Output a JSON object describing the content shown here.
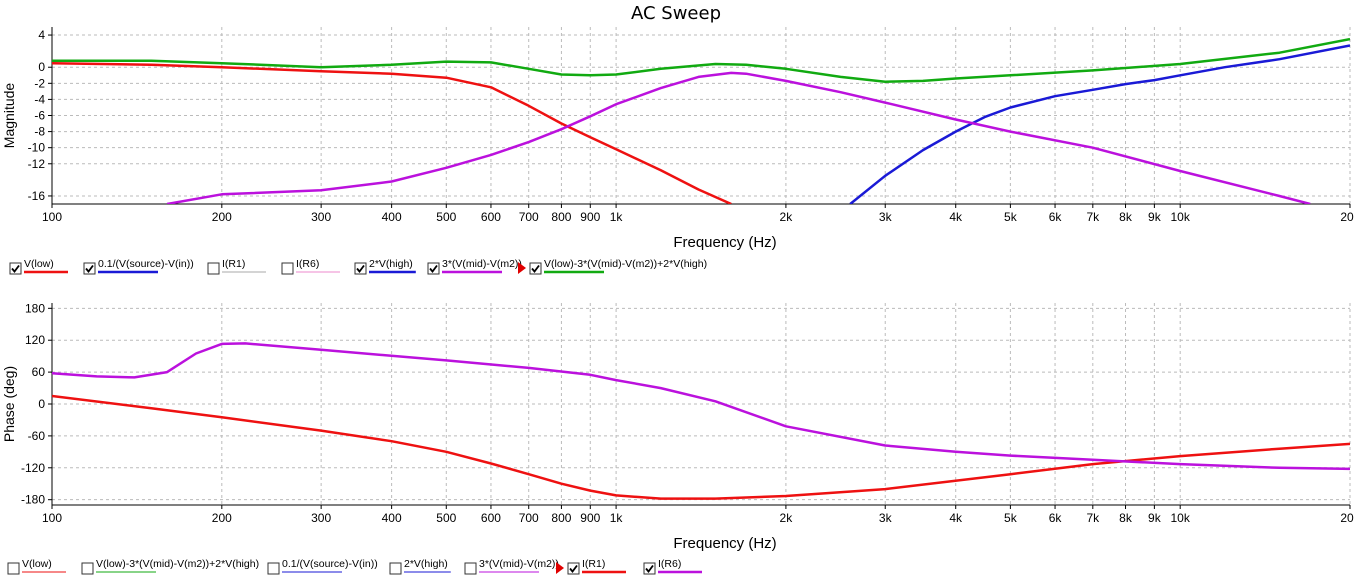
{
  "window": {
    "title": "AC Sweep"
  },
  "colors": {
    "red": "#ee1111",
    "blue": "#1a1ad6",
    "gray": "#aaaaaa",
    "pink": "#ee88cc",
    "purple": "#bb11dd",
    "green": "#11aa11",
    "grid": "#bbbbbb",
    "axis": "#000000"
  },
  "chart_data": [
    {
      "type": "line",
      "title": "AC Sweep",
      "xlabel": "Frequency (Hz)",
      "ylabel": "Magnitude",
      "x_scale": "log",
      "xlim": [
        100,
        20000
      ],
      "ylim": [
        -17,
        5
      ],
      "grid": true,
      "x_ticks": [
        {
          "v": 100,
          "label": "100"
        },
        {
          "v": 200,
          "label": "200"
        },
        {
          "v": 300,
          "label": "300"
        },
        {
          "v": 400,
          "label": "400"
        },
        {
          "v": 500,
          "label": "500"
        },
        {
          "v": 600,
          "label": "600"
        },
        {
          "v": 700,
          "label": "700"
        },
        {
          "v": 800,
          "label": "800"
        },
        {
          "v": 900,
          "label": "900"
        },
        {
          "v": 1000,
          "label": "1k"
        },
        {
          "v": 2000,
          "label": "2k"
        },
        {
          "v": 3000,
          "label": "3k"
        },
        {
          "v": 4000,
          "label": "4k"
        },
        {
          "v": 5000,
          "label": "5k"
        },
        {
          "v": 6000,
          "label": "6k"
        },
        {
          "v": 7000,
          "label": "7k"
        },
        {
          "v": 8000,
          "label": "8k"
        },
        {
          "v": 9000,
          "label": "9k"
        },
        {
          "v": 10000,
          "label": "10k"
        },
        {
          "v": 20000,
          "label": "20k"
        }
      ],
      "y_ticks": [
        {
          "v": 4,
          "label": "4"
        },
        {
          "v": 0,
          "label": "0"
        },
        {
          "v": -2,
          "label": "-2"
        },
        {
          "v": -4,
          "label": "-4"
        },
        {
          "v": -6,
          "label": "-6"
        },
        {
          "v": -8,
          "label": "-8"
        },
        {
          "v": -10,
          "label": "-10"
        },
        {
          "v": -12,
          "label": "-12"
        },
        {
          "v": -16,
          "label": "-16"
        }
      ],
      "series": [
        {
          "name": "V(low)",
          "color": "red",
          "checked": true,
          "shown": true,
          "x": [
            100,
            150,
            200,
            300,
            400,
            500,
            600,
            700,
            800,
            900,
            1000,
            1200,
            1400,
            1600
          ],
          "y": [
            0.5,
            0.3,
            0,
            -0.5,
            -0.8,
            -1.3,
            -2.5,
            -4.8,
            -7.0,
            -8.7,
            -10.2,
            -12.8,
            -15.2,
            -17.0
          ]
        },
        {
          "name": "0.1/(V(source)-V(in))",
          "color": "blue",
          "checked": true,
          "shown": true,
          "x": [
            2600,
            3000,
            3500,
            4000,
            4500,
            5000,
            6000,
            7000,
            8000,
            9000,
            10000,
            12000,
            15000,
            20000
          ],
          "y": [
            -17,
            -13.5,
            -10.3,
            -8.0,
            -6.2,
            -5.0,
            -3.6,
            -2.8,
            -2.1,
            -1.6,
            -1.0,
            0.0,
            1.0,
            2.7
          ]
        },
        {
          "name": "I(R1)",
          "color": "gray",
          "checked": false,
          "shown": false,
          "x": [],
          "y": []
        },
        {
          "name": "I(R6)",
          "color": "pink",
          "checked": false,
          "shown": false,
          "x": [],
          "y": []
        },
        {
          "name": "2*V(high)",
          "color": "blue",
          "checked": true,
          "shown": false,
          "x": [],
          "y": []
        },
        {
          "name": "3*(V(mid)-V(m2))",
          "color": "purple",
          "checked": true,
          "shown": true,
          "x": [
            160,
            200,
            300,
            400,
            500,
            600,
            700,
            800,
            900,
            1000,
            1200,
            1400,
            1600,
            1700,
            2000,
            2500,
            3000,
            4000,
            5000,
            7000,
            10000,
            15000,
            17000
          ],
          "y": [
            -17,
            -15.8,
            -15.3,
            -14.2,
            -12.5,
            -10.9,
            -9.3,
            -7.7,
            -6.1,
            -4.6,
            -2.6,
            -1.2,
            -0.7,
            -0.8,
            -1.7,
            -3.1,
            -4.4,
            -6.5,
            -8.0,
            -10.0,
            -12.9,
            -16.0,
            -17.0
          ]
        },
        {
          "name": "V(low)-3*(V(mid)-V(m2))+2*V(high)",
          "color": "green",
          "checked": true,
          "shown": true,
          "x": [
            100,
            150,
            200,
            300,
            400,
            500,
            600,
            700,
            800,
            900,
            1000,
            1200,
            1500,
            1700,
            2000,
            2500,
            3000,
            3500,
            4000,
            5000,
            7000,
            10000,
            15000,
            20000
          ],
          "y": [
            0.8,
            0.8,
            0.5,
            0,
            0.3,
            0.7,
            0.6,
            -0.2,
            -0.9,
            -1.0,
            -0.9,
            -0.2,
            0.4,
            0.3,
            -0.2,
            -1.2,
            -1.8,
            -1.7,
            -1.4,
            -1.0,
            -0.4,
            0.4,
            1.8,
            3.5
          ]
        }
      ]
    },
    {
      "type": "line",
      "xlabel": "Frequency (Hz)",
      "ylabel": "Phase (deg)",
      "x_scale": "log",
      "xlim": [
        100,
        20000
      ],
      "ylim": [
        -190,
        190
      ],
      "grid": true,
      "x_ticks": [
        {
          "v": 100,
          "label": "100"
        },
        {
          "v": 200,
          "label": "200"
        },
        {
          "v": 300,
          "label": "300"
        },
        {
          "v": 400,
          "label": "400"
        },
        {
          "v": 500,
          "label": "500"
        },
        {
          "v": 600,
          "label": "600"
        },
        {
          "v": 700,
          "label": "700"
        },
        {
          "v": 800,
          "label": "800"
        },
        {
          "v": 900,
          "label": "900"
        },
        {
          "v": 1000,
          "label": "1k"
        },
        {
          "v": 2000,
          "label": "2k"
        },
        {
          "v": 3000,
          "label": "3k"
        },
        {
          "v": 4000,
          "label": "4k"
        },
        {
          "v": 5000,
          "label": "5k"
        },
        {
          "v": 6000,
          "label": "6k"
        },
        {
          "v": 7000,
          "label": "7k"
        },
        {
          "v": 8000,
          "label": "8k"
        },
        {
          "v": 9000,
          "label": "9k"
        },
        {
          "v": 10000,
          "label": "10k"
        },
        {
          "v": 20000,
          "label": "20k"
        }
      ],
      "y_ticks": [
        {
          "v": 180,
          "label": "180"
        },
        {
          "v": 120,
          "label": "120"
        },
        {
          "v": 60,
          "label": "60"
        },
        {
          "v": 0,
          "label": "0"
        },
        {
          "v": -60,
          "label": "-60"
        },
        {
          "v": -120,
          "label": "-120"
        },
        {
          "v": -180,
          "label": "-180"
        }
      ],
      "series": [
        {
          "name": "V(low)",
          "color": "red",
          "checked": false,
          "shown": false,
          "x": [],
          "y": []
        },
        {
          "name": "V(low)-3*(V(mid)-V(m2))+2*V(high)",
          "color": "green",
          "checked": false,
          "shown": false,
          "x": [],
          "y": []
        },
        {
          "name": "0.1/(V(source)-V(in))",
          "color": "blue",
          "checked": false,
          "shown": false,
          "x": [],
          "y": []
        },
        {
          "name": "2*V(high)",
          "color": "blue",
          "checked": false,
          "shown": false,
          "x": [],
          "y": []
        },
        {
          "name": "3*(V(mid)-V(m2))",
          "color": "purple",
          "checked": false,
          "shown": false,
          "x": [],
          "y": []
        },
        {
          "name": "I(R1)",
          "color": "red",
          "checked": true,
          "shown": true,
          "x": [
            100,
            150,
            200,
            300,
            400,
            500,
            600,
            700,
            800,
            900,
            1000,
            1200,
            1500,
            2000,
            3000,
            5000,
            7000,
            10000,
            15000,
            20000
          ],
          "y": [
            15,
            -8,
            -25,
            -50,
            -70,
            -90,
            -112,
            -132,
            -150,
            -163,
            -172,
            -178,
            -178,
            -173,
            -160,
            -132,
            -113,
            -98,
            -84,
            -75
          ]
        },
        {
          "name": "I(R6)",
          "color": "purple",
          "checked": true,
          "shown": true,
          "x": [
            100,
            120,
            140,
            160,
            180,
            200,
            220,
            300,
            500,
            700,
            900,
            1000,
            1200,
            1500,
            2000,
            3000,
            4000,
            5000,
            7000,
            10000,
            15000,
            20000
          ],
          "y": [
            58,
            52,
            50,
            60,
            95,
            113,
            114,
            102,
            82,
            68,
            55,
            45,
            30,
            5,
            -42,
            -78,
            -90,
            -97,
            -105,
            -113,
            -120,
            -122
          ]
        }
      ]
    }
  ]
}
